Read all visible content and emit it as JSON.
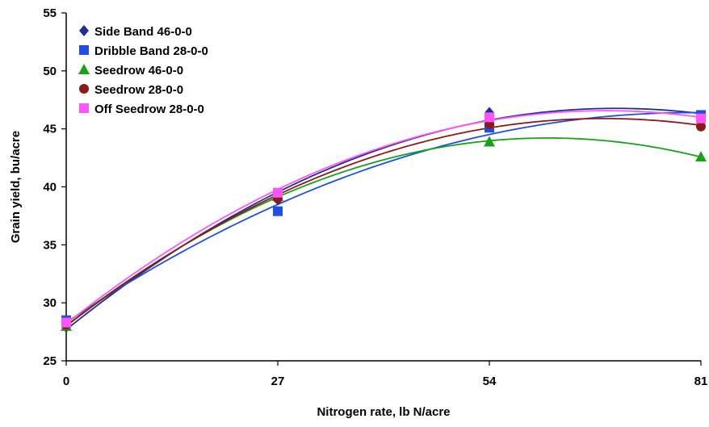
{
  "chart_data": {
    "type": "scatter",
    "xlabel": "Nitrogen rate, lb N/acre",
    "ylabel": "Grain yield, bu/acre",
    "xlim": [
      0,
      81
    ],
    "ylim": [
      25,
      55
    ],
    "x_ticks": [
      "0",
      "27",
      "54",
      "81"
    ],
    "y_ticks": [
      "25",
      "30",
      "35",
      "40",
      "45",
      "50",
      "55"
    ],
    "grid": false,
    "legend_position": "top-left",
    "x": [
      0,
      27,
      54,
      81
    ],
    "series": [
      {
        "name": "Side Band 46-0-0",
        "marker": "diamond",
        "color": "#1f2f8f",
        "values": [
          27.9,
          38.9,
          46.4,
          46.1
        ]
      },
      {
        "name": "Dribble Band 28-0-0",
        "marker": "square",
        "color": "#1f4fe0",
        "values": [
          28.5,
          37.9,
          45.1,
          46.2
        ]
      },
      {
        "name": "Seedrow 46-0-0",
        "marker": "triangle",
        "color": "#1aa01a",
        "values": [
          28.0,
          39.2,
          43.9,
          42.6
        ]
      },
      {
        "name": "Seedrow 28-0-0",
        "marker": "circle",
        "color": "#8b1a1a",
        "values": [
          28.1,
          39.0,
          45.4,
          45.2
        ]
      },
      {
        "name": "Off Seedrow 28-0-0",
        "marker": "square",
        "color": "#ff55ff",
        "values": [
          28.3,
          39.5,
          46.0,
          45.9
        ]
      }
    ]
  }
}
